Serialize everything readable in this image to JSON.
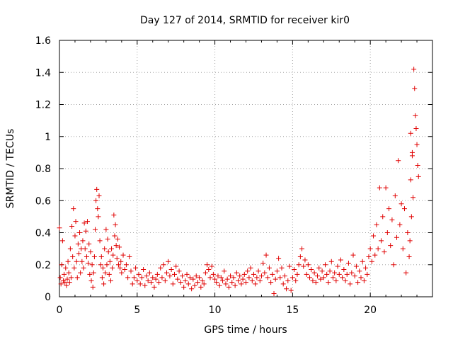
{
  "chart_data": {
    "type": "scatter",
    "title": "Day 127 of 2014, SRMTID for receiver kir0",
    "xlabel": "GPS time / hours",
    "ylabel": "SRMTID / TECUs",
    "xlim": [
      0,
      24
    ],
    "ylim": [
      0,
      1.6
    ],
    "xticks": [
      0,
      5,
      10,
      15,
      20
    ],
    "xtick_labels": [
      "0",
      "5",
      "10",
      "15",
      "20"
    ],
    "yticks": [
      0,
      0.2,
      0.4,
      0.6,
      0.8,
      1.0,
      1.2,
      1.4,
      1.6
    ],
    "ytick_labels": [
      "0",
      "0.2",
      "0.4",
      "0.6",
      "0.8",
      "1",
      "1.2",
      "1.4",
      "1.6"
    ],
    "grid": true,
    "marker": "plus",
    "color": "#e00000",
    "series": [
      {
        "name": "SRMTID",
        "points": [
          [
            0.0,
            0.43
          ],
          [
            0.05,
            0.12
          ],
          [
            0.1,
            0.08
          ],
          [
            0.15,
            0.2
          ],
          [
            0.2,
            0.35
          ],
          [
            0.25,
            0.1
          ],
          [
            0.3,
            0.14
          ],
          [
            0.35,
            0.09
          ],
          [
            0.4,
            0.18
          ],
          [
            0.45,
            0.07
          ],
          [
            0.5,
            0.11
          ],
          [
            0.55,
            0.22
          ],
          [
            0.6,
            0.15
          ],
          [
            0.65,
            0.09
          ],
          [
            0.7,
            0.3
          ],
          [
            0.75,
            0.12
          ],
          [
            0.8,
            0.44
          ],
          [
            0.85,
            0.25
          ],
          [
            0.9,
            0.55
          ],
          [
            0.95,
            0.18
          ],
          [
            1.0,
            0.38
          ],
          [
            1.05,
            0.47
          ],
          [
            1.1,
            0.22
          ],
          [
            1.15,
            0.12
          ],
          [
            1.2,
            0.33
          ],
          [
            1.25,
            0.27
          ],
          [
            1.3,
            0.4
          ],
          [
            1.35,
            0.15
          ],
          [
            1.4,
            0.3
          ],
          [
            1.45,
            0.22
          ],
          [
            1.5,
            0.35
          ],
          [
            1.55,
            0.18
          ],
          [
            1.6,
            0.46
          ],
          [
            1.65,
            0.3
          ],
          [
            1.7,
            0.41
          ],
          [
            1.75,
            0.25
          ],
          [
            1.8,
            0.47
          ],
          [
            1.85,
            0.21
          ],
          [
            1.9,
            0.33
          ],
          [
            1.95,
            0.14
          ],
          [
            2.0,
            0.28
          ],
          [
            2.05,
            0.1
          ],
          [
            2.1,
            0.2
          ],
          [
            2.15,
            0.06
          ],
          [
            2.2,
            0.15
          ],
          [
            2.25,
            0.25
          ],
          [
            2.3,
            0.42
          ],
          [
            2.35,
            0.6
          ],
          [
            2.4,
            0.67
          ],
          [
            2.45,
            0.55
          ],
          [
            2.5,
            0.5
          ],
          [
            2.55,
            0.63
          ],
          [
            2.6,
            0.35
          ],
          [
            2.65,
            0.2
          ],
          [
            2.7,
            0.25
          ],
          [
            2.75,
            0.12
          ],
          [
            2.8,
            0.18
          ],
          [
            2.85,
            0.08
          ],
          [
            2.9,
            0.3
          ],
          [
            2.95,
            0.15
          ],
          [
            3.0,
            0.42
          ],
          [
            3.05,
            0.2
          ],
          [
            3.1,
            0.36
          ],
          [
            3.15,
            0.28
          ],
          [
            3.2,
            0.14
          ],
          [
            3.25,
            0.22
          ],
          [
            3.3,
            0.1
          ],
          [
            3.35,
            0.3
          ],
          [
            3.4,
            0.18
          ],
          [
            3.45,
            0.26
          ],
          [
            3.5,
            0.51
          ],
          [
            3.55,
            0.38
          ],
          [
            3.6,
            0.45
          ],
          [
            3.65,
            0.32
          ],
          [
            3.7,
            0.24
          ],
          [
            3.75,
            0.36
          ],
          [
            3.8,
            0.2
          ],
          [
            3.85,
            0.31
          ],
          [
            3.9,
            0.18
          ],
          [
            3.95,
            0.22
          ],
          [
            4.0,
            0.15
          ],
          [
            4.1,
            0.26
          ],
          [
            4.2,
            0.17
          ],
          [
            4.3,
            0.2
          ],
          [
            4.4,
            0.12
          ],
          [
            4.5,
            0.25
          ],
          [
            4.6,
            0.16
          ],
          [
            4.7,
            0.08
          ],
          [
            4.8,
            0.12
          ],
          [
            4.9,
            0.18
          ],
          [
            5.0,
            0.1
          ],
          [
            5.1,
            0.14
          ],
          [
            5.2,
            0.08
          ],
          [
            5.3,
            0.12
          ],
          [
            5.4,
            0.17
          ],
          [
            5.5,
            0.07
          ],
          [
            5.6,
            0.13
          ],
          [
            5.7,
            0.1
          ],
          [
            5.8,
            0.15
          ],
          [
            5.9,
            0.09
          ],
          [
            6.0,
            0.12
          ],
          [
            6.1,
            0.06
          ],
          [
            6.2,
            0.11
          ],
          [
            6.3,
            0.14
          ],
          [
            6.4,
            0.09
          ],
          [
            6.5,
            0.18
          ],
          [
            6.6,
            0.12
          ],
          [
            6.7,
            0.2
          ],
          [
            6.8,
            0.1
          ],
          [
            6.9,
            0.15
          ],
          [
            7.0,
            0.22
          ],
          [
            7.1,
            0.13
          ],
          [
            7.2,
            0.17
          ],
          [
            7.3,
            0.08
          ],
          [
            7.4,
            0.14
          ],
          [
            7.5,
            0.19
          ],
          [
            7.6,
            0.11
          ],
          [
            7.7,
            0.16
          ],
          [
            7.8,
            0.09
          ],
          [
            7.9,
            0.13
          ],
          [
            8.0,
            0.06
          ],
          [
            8.1,
            0.1
          ],
          [
            8.2,
            0.14
          ],
          [
            8.3,
            0.08
          ],
          [
            8.4,
            0.12
          ],
          [
            8.5,
            0.05
          ],
          [
            8.6,
            0.11
          ],
          [
            8.7,
            0.07
          ],
          [
            8.8,
            0.13
          ],
          [
            8.9,
            0.09
          ],
          [
            9.0,
            0.12
          ],
          [
            9.1,
            0.06
          ],
          [
            9.2,
            0.1
          ],
          [
            9.3,
            0.08
          ],
          [
            9.4,
            0.15
          ],
          [
            9.5,
            0.2
          ],
          [
            9.6,
            0.17
          ],
          [
            9.7,
            0.12
          ],
          [
            9.8,
            0.19
          ],
          [
            9.9,
            0.14
          ],
          [
            10.0,
            0.11
          ],
          [
            10.1,
            0.09
          ],
          [
            10.2,
            0.13
          ],
          [
            10.3,
            0.07
          ],
          [
            10.4,
            0.12
          ],
          [
            10.5,
            0.1
          ],
          [
            10.6,
            0.16
          ],
          [
            10.7,
            0.08
          ],
          [
            10.8,
            0.11
          ],
          [
            10.9,
            0.06
          ],
          [
            11.0,
            0.13
          ],
          [
            11.1,
            0.09
          ],
          [
            11.2,
            0.12
          ],
          [
            11.3,
            0.07
          ],
          [
            11.4,
            0.15
          ],
          [
            11.5,
            0.1
          ],
          [
            11.6,
            0.13
          ],
          [
            11.7,
            0.08
          ],
          [
            11.8,
            0.11
          ],
          [
            11.9,
            0.14
          ],
          [
            12.0,
            0.09
          ],
          [
            12.1,
            0.16
          ],
          [
            12.2,
            0.12
          ],
          [
            12.3,
            0.18
          ],
          [
            12.4,
            0.1
          ],
          [
            12.5,
            0.14
          ],
          [
            12.6,
            0.08
          ],
          [
            12.7,
            0.12
          ],
          [
            12.8,
            0.16
          ],
          [
            12.9,
            0.1
          ],
          [
            13.0,
            0.13
          ],
          [
            13.1,
            0.21
          ],
          [
            13.2,
            0.15
          ],
          [
            13.3,
            0.26
          ],
          [
            13.4,
            0.12
          ],
          [
            13.5,
            0.18
          ],
          [
            13.6,
            0.09
          ],
          [
            13.7,
            0.14
          ],
          [
            13.8,
            0.02
          ],
          [
            13.9,
            0.11
          ],
          [
            14.0,
            0.16
          ],
          [
            14.1,
            0.24
          ],
          [
            14.2,
            0.12
          ],
          [
            14.3,
            0.18
          ],
          [
            14.4,
            0.08
          ],
          [
            14.5,
            0.13
          ],
          [
            14.6,
            0.05
          ],
          [
            14.7,
            0.1
          ],
          [
            14.8,
            0.19
          ],
          [
            14.9,
            0.04
          ],
          [
            15.0,
            0.12
          ],
          [
            15.1,
            0.17
          ],
          [
            15.2,
            0.1
          ],
          [
            15.3,
            0.14
          ],
          [
            15.4,
            0.2
          ],
          [
            15.5,
            0.25
          ],
          [
            15.6,
            0.3
          ],
          [
            15.7,
            0.19
          ],
          [
            15.8,
            0.23
          ],
          [
            15.9,
            0.14
          ],
          [
            16.0,
            0.2
          ],
          [
            16.1,
            0.12
          ],
          [
            16.2,
            0.17
          ],
          [
            16.3,
            0.1
          ],
          [
            16.4,
            0.15
          ],
          [
            16.5,
            0.09
          ],
          [
            16.6,
            0.13
          ],
          [
            16.7,
            0.18
          ],
          [
            16.8,
            0.11
          ],
          [
            16.9,
            0.16
          ],
          [
            17.0,
            0.12
          ],
          [
            17.1,
            0.2
          ],
          [
            17.2,
            0.14
          ],
          [
            17.3,
            0.09
          ],
          [
            17.4,
            0.16
          ],
          [
            17.5,
            0.22
          ],
          [
            17.6,
            0.12
          ],
          [
            17.7,
            0.15
          ],
          [
            17.8,
            0.1
          ],
          [
            17.9,
            0.19
          ],
          [
            18.0,
            0.14
          ],
          [
            18.1,
            0.23
          ],
          [
            18.2,
            0.12
          ],
          [
            18.3,
            0.17
          ],
          [
            18.4,
            0.1
          ],
          [
            18.5,
            0.14
          ],
          [
            18.6,
            0.21
          ],
          [
            18.7,
            0.08
          ],
          [
            18.8,
            0.15
          ],
          [
            18.9,
            0.26
          ],
          [
            19.0,
            0.13
          ],
          [
            19.1,
            0.19
          ],
          [
            19.2,
            0.09
          ],
          [
            19.3,
            0.16
          ],
          [
            19.4,
            0.12
          ],
          [
            19.5,
            0.22
          ],
          [
            19.6,
            0.1
          ],
          [
            19.7,
            0.18
          ],
          [
            19.8,
            0.14
          ],
          [
            19.9,
            0.25
          ],
          [
            20.0,
            0.3
          ],
          [
            20.1,
            0.22
          ],
          [
            20.2,
            0.38
          ],
          [
            20.3,
            0.26
          ],
          [
            20.4,
            0.45
          ],
          [
            20.5,
            0.3
          ],
          [
            20.6,
            0.68
          ],
          [
            20.7,
            0.35
          ],
          [
            20.8,
            0.5
          ],
          [
            20.9,
            0.28
          ],
          [
            21.0,
            0.68
          ],
          [
            21.1,
            0.4
          ],
          [
            21.2,
            0.55
          ],
          [
            21.3,
            0.32
          ],
          [
            21.4,
            0.48
          ],
          [
            21.5,
            0.2
          ],
          [
            21.6,
            0.63
          ],
          [
            21.7,
            0.37
          ],
          [
            21.8,
            0.85
          ],
          [
            21.9,
            0.45
          ],
          [
            22.0,
            0.58
          ],
          [
            22.1,
            0.3
          ],
          [
            22.2,
            0.55
          ],
          [
            22.3,
            0.15
          ],
          [
            22.4,
            0.4
          ],
          [
            22.5,
            0.25
          ],
          [
            22.6,
            0.73
          ],
          [
            22.65,
            0.5
          ],
          [
            22.7,
            0.88
          ],
          [
            22.75,
            0.62
          ],
          [
            22.8,
            1.42
          ],
          [
            22.85,
            1.3
          ],
          [
            22.9,
            1.13
          ],
          [
            22.95,
            1.05
          ],
          [
            23.0,
            0.95
          ],
          [
            23.05,
            0.82
          ],
          [
            23.1,
            0.75
          ],
          [
            22.6,
            1.02
          ],
          [
            22.7,
            0.9
          ],
          [
            22.55,
            0.35
          ]
        ]
      }
    ]
  }
}
